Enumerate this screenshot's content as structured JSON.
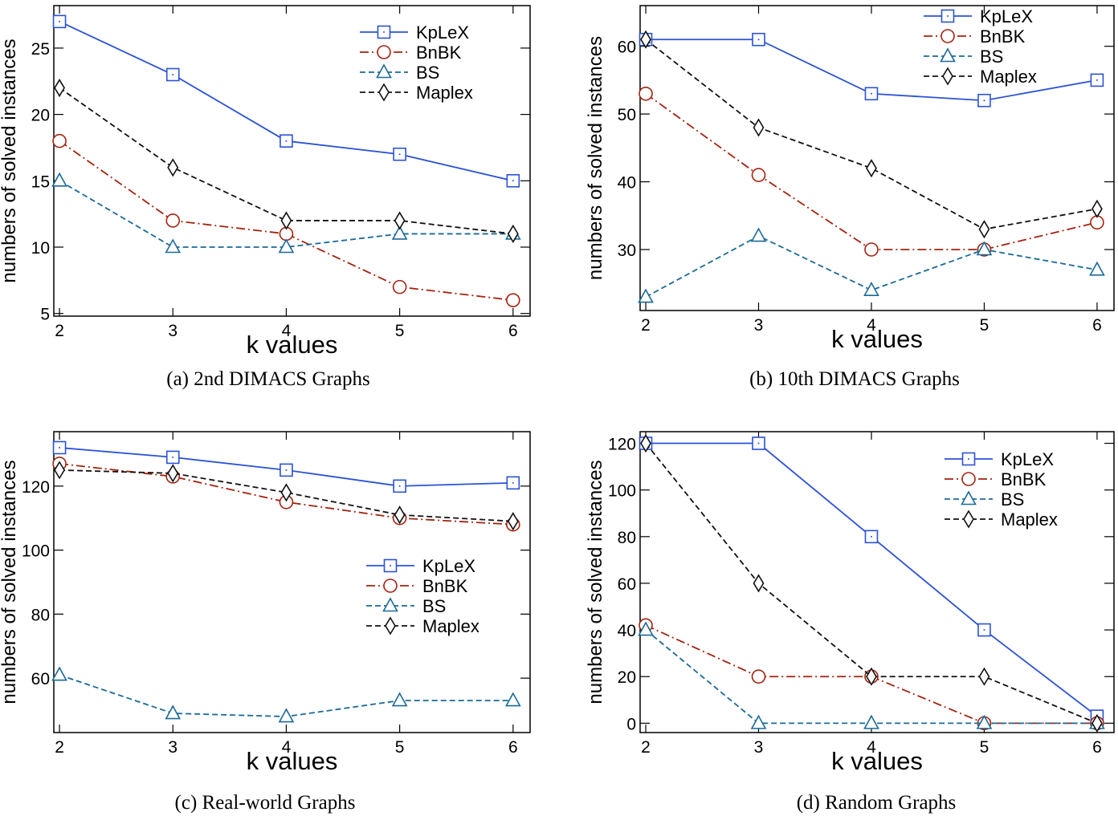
{
  "chart_data": [
    {
      "type": "line",
      "caption": "(a)  2nd DIMACS Graphs",
      "xlabel": "k values",
      "ylabel": "numbers of solved instances",
      "x": [
        2,
        3,
        4,
        5,
        6
      ],
      "xlim": [
        1.95,
        6.15
      ],
      "ylim": [
        4.8,
        28.2
      ],
      "yticks": [
        5,
        10,
        15,
        20,
        25
      ],
      "legend_position": "top-right",
      "series": [
        {
          "name": "KpLeX",
          "values": [
            27,
            23,
            18,
            17,
            15
          ]
        },
        {
          "name": "BnBK",
          "values": [
            18,
            12,
            11,
            7,
            6
          ]
        },
        {
          "name": "BS",
          "values": [
            15,
            10,
            10,
            11,
            11
          ]
        },
        {
          "name": "Maplex",
          "values": [
            22,
            16,
            12,
            12,
            11
          ]
        }
      ]
    },
    {
      "type": "line",
      "caption": "(b)  10th DIMACS Graphs",
      "xlabel": "k values",
      "ylabel": "numbers of solved instances",
      "x": [
        2,
        3,
        4,
        5,
        6
      ],
      "xlim": [
        1.95,
        6.15
      ],
      "ylim": [
        21,
        66
      ],
      "yticks": [
        30,
        40,
        50,
        60
      ],
      "legend_position": "top-right",
      "series": [
        {
          "name": "KpLeX",
          "values": [
            61,
            61,
            53,
            52,
            55
          ]
        },
        {
          "name": "BnBK",
          "values": [
            53,
            41,
            30,
            30,
            34
          ]
        },
        {
          "name": "BS",
          "values": [
            23,
            32,
            24,
            30,
            27
          ]
        },
        {
          "name": "Maplex",
          "values": [
            61,
            48,
            42,
            33,
            36
          ]
        }
      ]
    },
    {
      "type": "line",
      "caption": "(c)  Real-world Graphs",
      "xlabel": "k values",
      "ylabel": "numbers of solved instances",
      "x": [
        2,
        3,
        4,
        5,
        6
      ],
      "xlim": [
        1.95,
        6.15
      ],
      "ylim": [
        43,
        137
      ],
      "yticks": [
        60,
        80,
        100,
        120
      ],
      "legend_position": "center-right",
      "series": [
        {
          "name": "KpLeX",
          "values": [
            132,
            129,
            125,
            120,
            121
          ]
        },
        {
          "name": "BnBK",
          "values": [
            127,
            123,
            115,
            110,
            108
          ]
        },
        {
          "name": "BS",
          "values": [
            61,
            49,
            48,
            53,
            53
          ]
        },
        {
          "name": "Maplex",
          "values": [
            125,
            124,
            118,
            111,
            109
          ]
        }
      ]
    },
    {
      "type": "line",
      "caption": "(d)  Random Graphs",
      "xlabel": "k values",
      "ylabel": "numbers of solved instances",
      "x": [
        2,
        3,
        4,
        5,
        6
      ],
      "xlim": [
        1.95,
        6.15
      ],
      "ylim": [
        -4,
        125
      ],
      "yticks": [
        0,
        20,
        40,
        60,
        80,
        100,
        120
      ],
      "legend_position": "top-right",
      "series": [
        {
          "name": "KpLeX",
          "values": [
            120,
            120,
            80,
            40,
            3
          ]
        },
        {
          "name": "BnBK",
          "values": [
            42,
            20,
            20,
            0,
            0
          ]
        },
        {
          "name": "BS",
          "values": [
            40,
            0,
            0,
            0,
            0
          ]
        },
        {
          "name": "Maplex",
          "values": [
            120,
            60,
            20,
            20,
            0
          ]
        }
      ]
    }
  ],
  "colors": {
    "KpLeX": "#2b52d6",
    "BnBK": "#a3230f",
    "BS": "#1b6a96",
    "Maplex": "#111111"
  },
  "markers": {
    "KpLeX": "square",
    "BnBK": "circle",
    "BS": "triangle",
    "Maplex": "diamond"
  }
}
